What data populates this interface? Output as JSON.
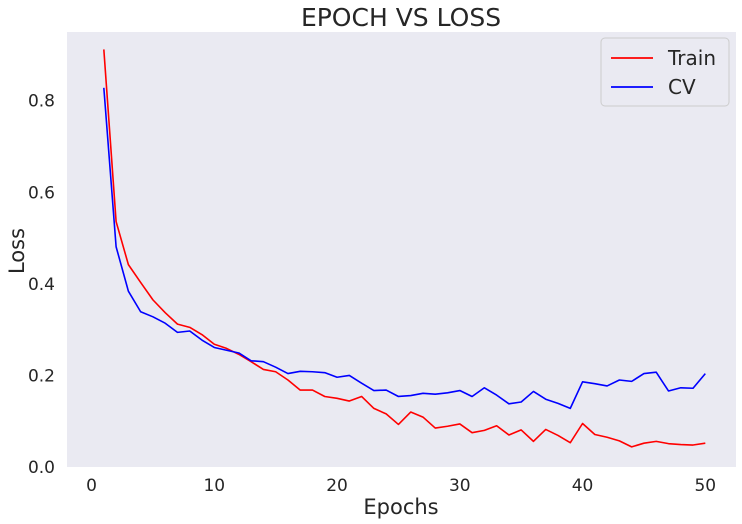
{
  "chart_data": {
    "type": "line",
    "title": "EPOCH VS LOSS",
    "xlabel": "Epochs",
    "ylabel": "Loss",
    "xlim": [
      -2,
      52.5
    ],
    "ylim": [
      0,
      0.95
    ],
    "xticks": [
      0,
      10,
      20,
      30,
      40,
      50
    ],
    "yticks": [
      0.0,
      0.2,
      0.4,
      0.6,
      0.8
    ],
    "ytick_labels": [
      "0.0",
      "0.2",
      "0.4",
      "0.6",
      "0.8"
    ],
    "grid": false,
    "legend_position": "top-right",
    "background": "#eaeaf2",
    "x": [
      1,
      2,
      3,
      4,
      5,
      6,
      7,
      8,
      9,
      10,
      11,
      12,
      13,
      14,
      15,
      16,
      17,
      18,
      19,
      20,
      21,
      22,
      23,
      24,
      25,
      26,
      27,
      28,
      29,
      30,
      31,
      32,
      33,
      34,
      35,
      36,
      37,
      38,
      39,
      40,
      41,
      42,
      43,
      44,
      45,
      46,
      47,
      48,
      49,
      50
    ],
    "series": [
      {
        "name": "Train",
        "color": "#ff0000",
        "values": [
          0.912,
          0.536,
          0.442,
          0.403,
          0.365,
          0.337,
          0.312,
          0.305,
          0.289,
          0.268,
          0.259,
          0.246,
          0.23,
          0.213,
          0.208,
          0.19,
          0.168,
          0.168,
          0.154,
          0.15,
          0.144,
          0.154,
          0.128,
          0.116,
          0.093,
          0.12,
          0.109,
          0.085,
          0.089,
          0.094,
          0.075,
          0.08,
          0.09,
          0.07,
          0.081,
          0.056,
          0.082,
          0.069,
          0.053,
          0.095,
          0.071,
          0.065,
          0.057,
          0.044,
          0.052,
          0.056,
          0.051,
          0.049,
          0.048,
          0.052
        ]
      },
      {
        "name": "CV",
        "color": "#0000ff",
        "values": [
          0.828,
          0.481,
          0.384,
          0.339,
          0.328,
          0.314,
          0.294,
          0.297,
          0.277,
          0.261,
          0.255,
          0.249,
          0.232,
          0.23,
          0.218,
          0.204,
          0.209,
          0.208,
          0.206,
          0.196,
          0.2,
          0.183,
          0.167,
          0.168,
          0.154,
          0.156,
          0.161,
          0.159,
          0.162,
          0.167,
          0.154,
          0.173,
          0.157,
          0.138,
          0.142,
          0.165,
          0.148,
          0.139,
          0.128,
          0.186,
          0.182,
          0.177,
          0.19,
          0.187,
          0.204,
          0.207,
          0.166,
          0.173,
          0.172,
          0.204
        ]
      }
    ]
  }
}
